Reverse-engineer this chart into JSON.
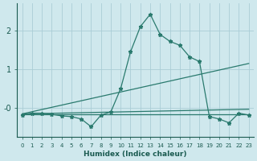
{
  "xlabel": "Humidex (Indice chaleur)",
  "bg_color": "#cfe8ed",
  "grid_color": "#aacdd6",
  "line_color": "#2a7a6e",
  "xlim": [
    -0.5,
    23.5
  ],
  "ylim": [
    -0.75,
    2.7
  ],
  "yticks": [
    0,
    1,
    2
  ],
  "ytick_labels": [
    "-0",
    "1",
    "2"
  ],
  "xtick_labels": [
    "0",
    "1",
    "2",
    "3",
    "4",
    "5",
    "6",
    "7",
    "8",
    "9",
    "10",
    "11",
    "12",
    "13",
    "14",
    "15",
    "16",
    "17",
    "18",
    "19",
    "20",
    "21",
    "22",
    "23"
  ],
  "main_series": {
    "x": [
      0,
      1,
      2,
      3,
      4,
      5,
      6,
      7,
      8,
      9,
      10,
      11,
      12,
      13,
      14,
      15,
      16,
      17,
      18,
      19,
      20,
      21,
      22,
      23
    ],
    "y": [
      -0.18,
      -0.13,
      -0.13,
      -0.16,
      -0.2,
      -0.22,
      -0.28,
      -0.48,
      -0.18,
      -0.1,
      0.5,
      1.45,
      2.1,
      2.42,
      1.9,
      1.72,
      1.62,
      1.32,
      1.2,
      -0.22,
      -0.28,
      -0.38,
      -0.13,
      -0.18
    ]
  },
  "flat_lines": [
    {
      "x": [
        0,
        23
      ],
      "y": [
        -0.15,
        -0.15
      ]
    },
    {
      "x": [
        0,
        23
      ],
      "y": [
        -0.15,
        -0.03
      ]
    },
    {
      "x": [
        0,
        23
      ],
      "y": [
        -0.15,
        1.15
      ]
    }
  ]
}
